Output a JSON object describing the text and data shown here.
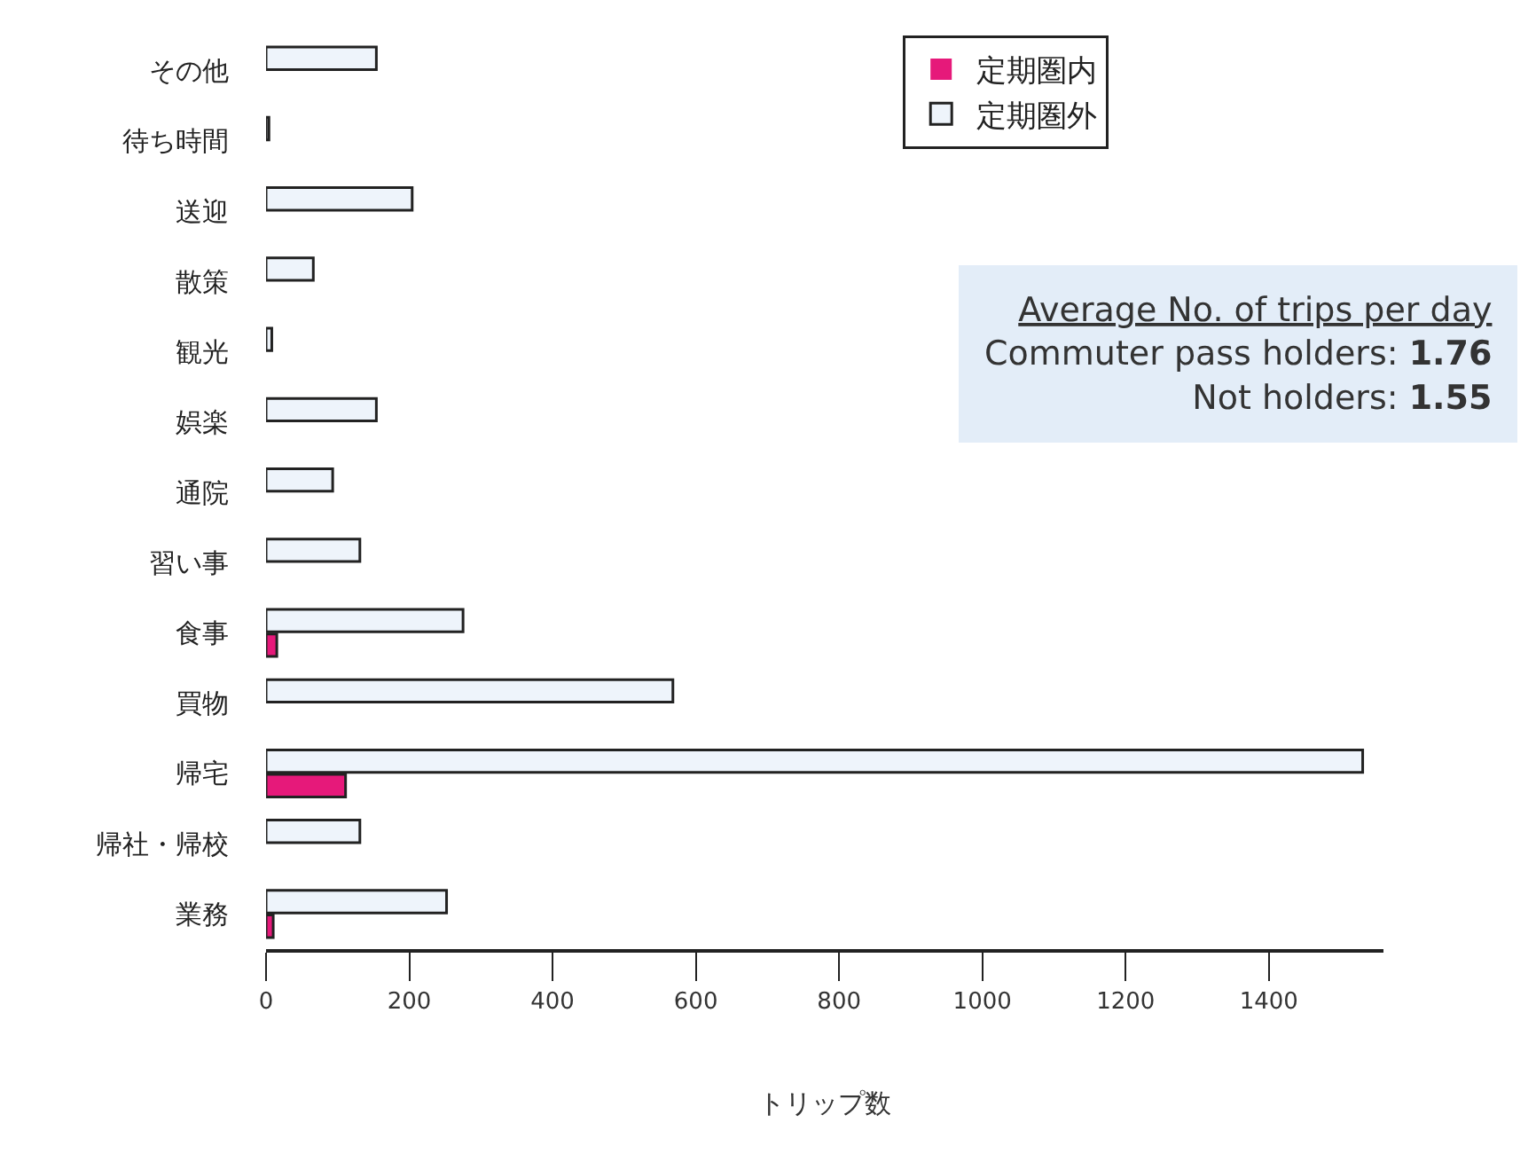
{
  "chart_data": {
    "type": "bar",
    "orientation": "horizontal",
    "xlabel": "トリップ数",
    "categories": [
      "その他",
      "待ち時間",
      "送迎",
      "散策",
      "観光",
      "娯楽",
      "通院",
      "習い事",
      "食事",
      "買物",
      "帰宅",
      "帰社・帰校",
      "業務"
    ],
    "series": [
      {
        "name": "定期圏外",
        "color": "#eef4fb",
        "values": [
          154,
          4,
          204,
          66,
          8,
          154,
          93,
          131,
          275,
          568,
          1531,
          131,
          252
        ]
      },
      {
        "name": "定期圏内",
        "color": "#e6197a",
        "values": [
          0,
          null,
          0,
          0,
          0,
          0,
          0,
          0,
          15,
          null,
          111,
          null,
          10
        ]
      }
    ],
    "xlim": [
      0,
      1560
    ],
    "xticks": [
      0,
      200,
      400,
      600,
      800,
      1000,
      1200,
      1400
    ],
    "legend": "top right",
    "annotations": [
      "Average No. of trips per day",
      "Commuter pass holders: 1.76",
      "Not holders: 1.55"
    ]
  }
}
